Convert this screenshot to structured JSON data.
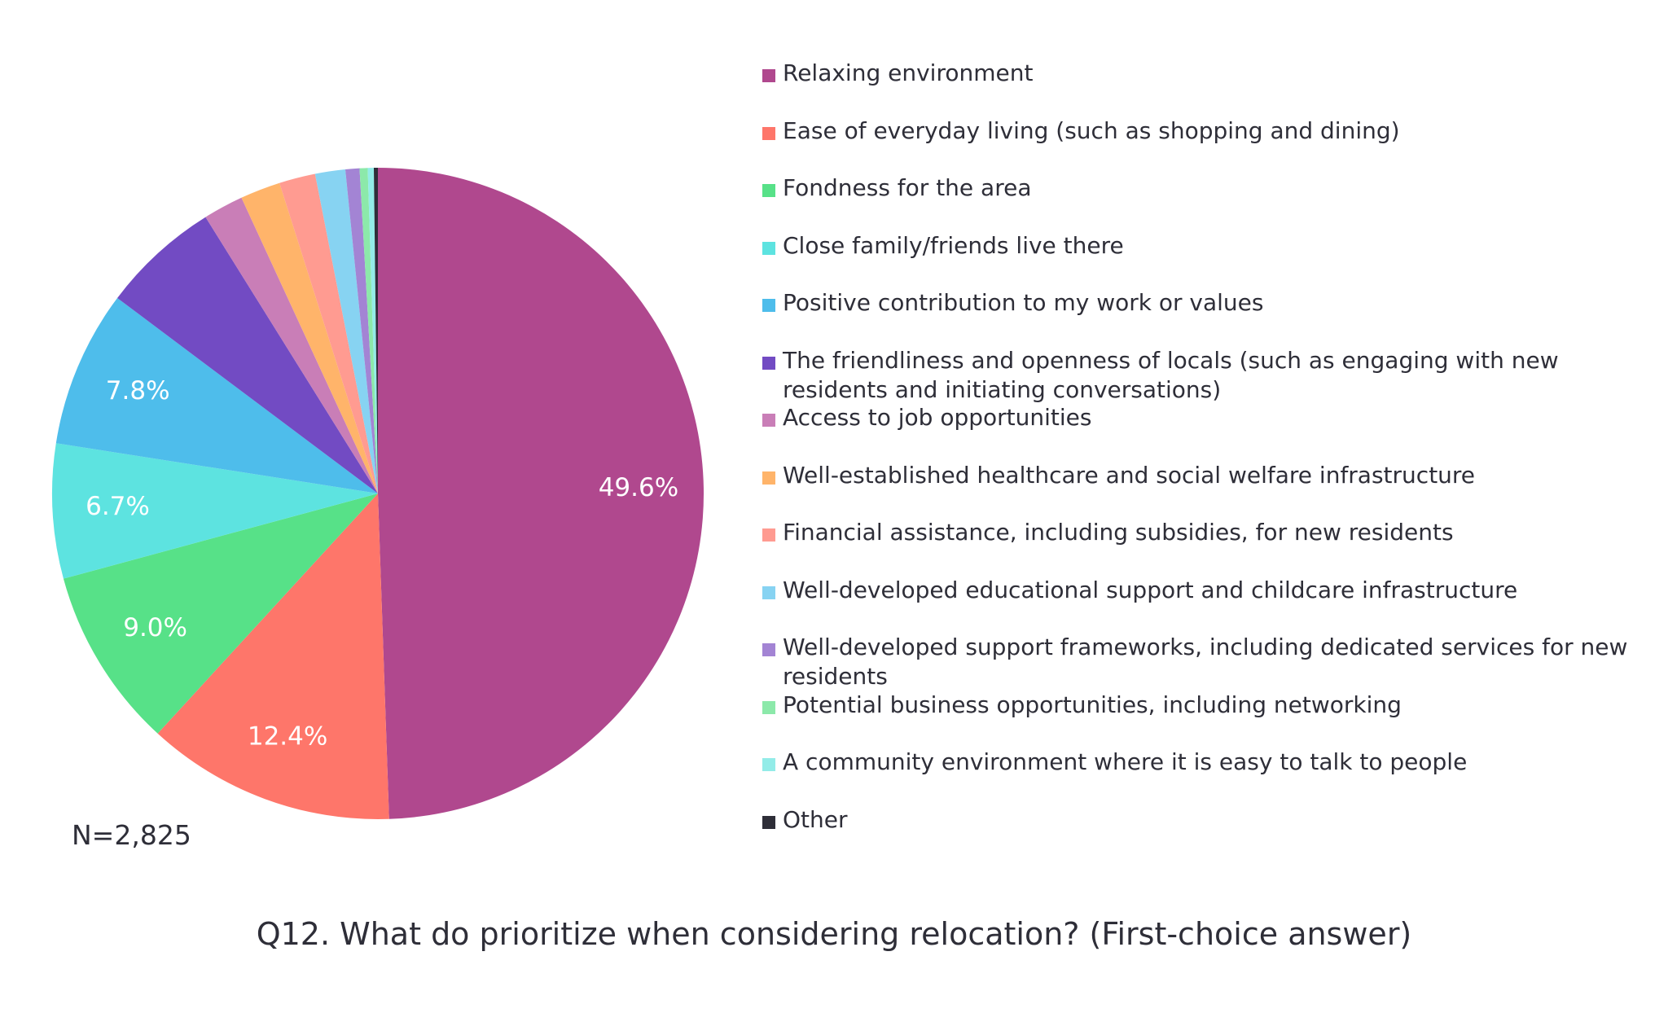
{
  "chart_data": {
    "type": "pie",
    "title": "Q12. What do prioritize when considering relocation? (First-choice answer)",
    "note": "N=2,825",
    "legend_position": "right",
    "start_angle": "12 o'clock, clockwise",
    "slices": [
      {
        "label": "Relaxing environment",
        "value": 49.6,
        "display": "49.6%",
        "color": "#b0488e"
      },
      {
        "label": "Ease of everyday living (such as shopping and dining)",
        "value": 12.4,
        "display": "12.4%",
        "color": "#fe766a"
      },
      {
        "label": "Fondness for the area",
        "value": 9.0,
        "display": "9.0%",
        "color": "#57e188"
      },
      {
        "label": "Close family/friends live there",
        "value": 6.7,
        "display": "6.7%",
        "color": "#5de3e0"
      },
      {
        "label": "Positive contribution to my work or values",
        "value": 7.8,
        "display": "7.8%",
        "color": "#4ebdeb"
      },
      {
        "label": "The friendliness and openness of locals (such as engaging with new residents and initiating conversations)",
        "value": 5.9,
        "display": "",
        "color": "#724bc3"
      },
      {
        "label": "Access to job opportunities",
        "value": 2.0,
        "display": "",
        "color": "#c97eb7"
      },
      {
        "label": "Well-established healthcare and social welfare infrastructure",
        "value": 2.0,
        "display": "",
        "color": "#ffb46a"
      },
      {
        "label": "Financial assistance, including subsidies, for new residents",
        "value": 1.8,
        "display": "",
        "color": "#ff9b91"
      },
      {
        "label": "Well-developed educational support and childcare infrastructure",
        "value": 1.5,
        "display": "",
        "color": "#87d3f2"
      },
      {
        "label": "Well-developed support frameworks, including dedicated services for new residents",
        "value": 0.7,
        "display": "",
        "color": "#a384d4"
      },
      {
        "label": "Potential business opportunities, including networking",
        "value": 0.4,
        "display": "",
        "color": "#8ce9aa"
      },
      {
        "label": "A community environment where it is easy to talk to people",
        "value": 0.3,
        "display": "",
        "color": "#93ece8"
      },
      {
        "label": "Other",
        "value": 0.2,
        "display": "",
        "color": "#2e2e38"
      }
    ]
  }
}
